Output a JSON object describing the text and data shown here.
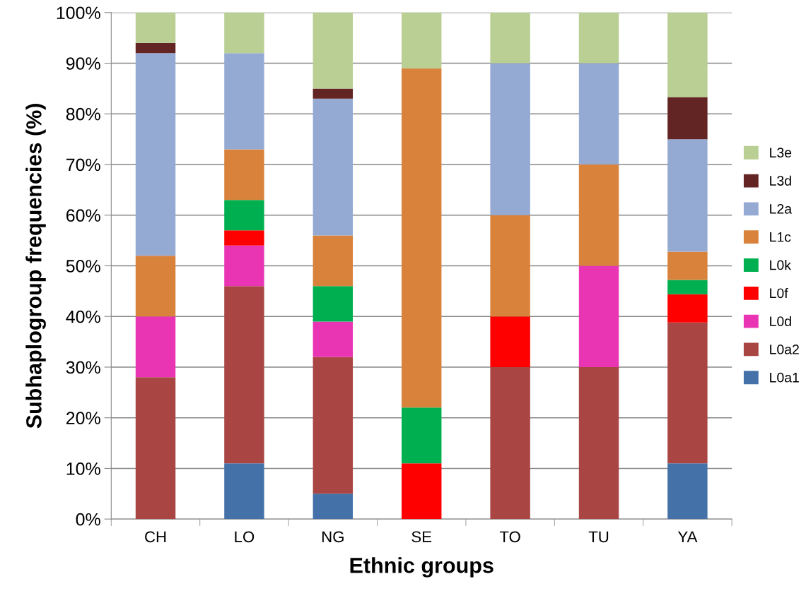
{
  "chart_data": {
    "type": "bar",
    "stacked": true,
    "xlabel": "Ethnic groups",
    "ylabel": "Subhaplogroup frequencies (%)",
    "categories": [
      "CH",
      "LO",
      "NG",
      "SE",
      "TO",
      "TU",
      "YA"
    ],
    "series": [
      {
        "name": "L0a1",
        "color": "#4472a8",
        "values": [
          0,
          11,
          5,
          0,
          0,
          0,
          11
        ]
      },
      {
        "name": "L0a2",
        "color": "#a94543",
        "values": [
          28,
          35,
          27,
          0,
          30,
          30,
          27.8
        ]
      },
      {
        "name": "L0d",
        "color": "#e935b4",
        "values": [
          12,
          8,
          7,
          0,
          0,
          20,
          0
        ]
      },
      {
        "name": "L0f",
        "color": "#ff0000",
        "values": [
          0,
          3,
          0,
          11,
          10,
          0,
          5.6
        ]
      },
      {
        "name": "L0k",
        "color": "#00b050",
        "values": [
          0,
          6,
          7,
          11,
          0,
          0,
          2.8
        ]
      },
      {
        "name": "L1c",
        "color": "#d9823b",
        "values": [
          12,
          10,
          10,
          67,
          20,
          20,
          5.6
        ]
      },
      {
        "name": "L2a",
        "color": "#95aad3",
        "values": [
          40,
          19,
          27,
          0,
          30,
          20,
          22.2
        ]
      },
      {
        "name": "L3d",
        "color": "#632523",
        "values": [
          2,
          0,
          2,
          0,
          0,
          0,
          8.3
        ]
      },
      {
        "name": "L3e",
        "color": "#b9cf93",
        "values": [
          6,
          8,
          15,
          11,
          10,
          10,
          16.7
        ]
      }
    ],
    "ylim": [
      0,
      100
    ],
    "yticks": [
      {
        "value": 0,
        "label": "0%"
      },
      {
        "value": 10,
        "label": "10%"
      },
      {
        "value": 20,
        "label": "20%"
      },
      {
        "value": 30,
        "label": "30%"
      },
      {
        "value": 40,
        "label": "40%"
      },
      {
        "value": 50,
        "label": "50%"
      },
      {
        "value": 60,
        "label": "60%"
      },
      {
        "value": 70,
        "label": "70%"
      },
      {
        "value": 80,
        "label": "80%"
      },
      {
        "value": 90,
        "label": "90%"
      },
      {
        "value": 100,
        "label": "100%"
      }
    ],
    "grid": "y",
    "legend": "right"
  }
}
